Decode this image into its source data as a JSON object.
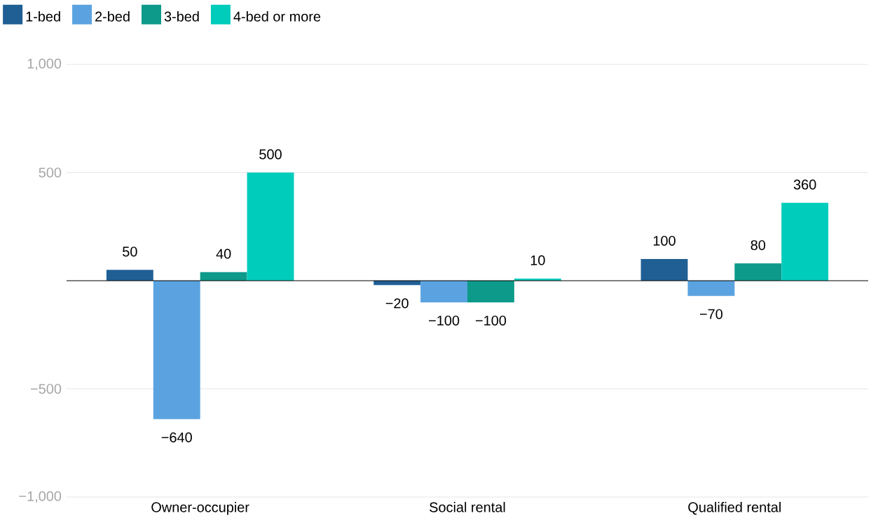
{
  "chart_data": {
    "type": "bar",
    "categories": [
      "Owner-occupier",
      "Social rental",
      "Qualified rental"
    ],
    "series": [
      {
        "name": "1-bed",
        "color": "#1f5f94",
        "values": [
          50,
          -20,
          100
        ],
        "value_labels": [
          "50",
          "−20",
          "100"
        ]
      },
      {
        "name": "2-bed",
        "color": "#5ba3e0",
        "values": [
          -640,
          -100,
          -70
        ],
        "value_labels": [
          "−640",
          "−100",
          "−70"
        ]
      },
      {
        "name": "3-bed",
        "color": "#0d9a8a",
        "values": [
          40,
          -100,
          80
        ],
        "value_labels": [
          "40",
          "−100",
          "80"
        ]
      },
      {
        "name": "4-bed or more",
        "color": "#00ccbc",
        "values": [
          500,
          10,
          360
        ],
        "value_labels": [
          "500",
          "10",
          "360"
        ]
      }
    ],
    "ylim": [
      -1000,
      1000
    ],
    "yticks": [
      {
        "value": -1000,
        "label": "−1,000"
      },
      {
        "value": -500,
        "label": "−500"
      },
      {
        "value": 500,
        "label": "500"
      },
      {
        "value": 1000,
        "label": "1,000"
      }
    ],
    "grid": "y",
    "legend": "top left"
  }
}
